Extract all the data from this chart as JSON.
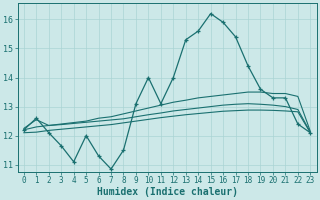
{
  "xlabel": "Humidex (Indice chaleur)",
  "ylabel": "",
  "background_color": "#cce8e8",
  "grid_color": "#aad4d4",
  "line_color": "#1a7070",
  "plot_bg": "#cce8e8",
  "xlim": [
    -0.5,
    23.5
  ],
  "ylim": [
    10.75,
    16.55
  ],
  "yticks": [
    11,
    12,
    13,
    14,
    15,
    16
  ],
  "xticks": [
    0,
    1,
    2,
    3,
    4,
    5,
    6,
    7,
    8,
    9,
    10,
    11,
    12,
    13,
    14,
    15,
    16,
    17,
    18,
    19,
    20,
    21,
    22,
    23
  ],
  "main_line_x": [
    0,
    1,
    2,
    3,
    4,
    5,
    6,
    7,
    8,
    9,
    10,
    11,
    12,
    13,
    14,
    15,
    16,
    17,
    18,
    19,
    20,
    21,
    22,
    23
  ],
  "main_line_y": [
    12.2,
    12.6,
    12.1,
    11.65,
    11.1,
    12.0,
    11.3,
    10.85,
    11.5,
    13.1,
    14.0,
    13.1,
    14.0,
    15.3,
    15.6,
    16.2,
    15.9,
    15.4,
    14.4,
    13.6,
    13.3,
    13.3,
    12.4,
    12.1
  ],
  "upper_line_x": [
    0,
    1,
    2,
    3,
    4,
    5,
    6,
    7,
    8,
    9,
    10,
    11,
    12,
    13,
    14,
    15,
    16,
    17,
    18,
    19,
    20,
    21,
    22,
    23
  ],
  "upper_line_y": [
    12.25,
    12.55,
    12.35,
    12.4,
    12.45,
    12.5,
    12.6,
    12.65,
    12.75,
    12.85,
    12.95,
    13.05,
    13.15,
    13.22,
    13.3,
    13.35,
    13.4,
    13.45,
    13.5,
    13.5,
    13.45,
    13.45,
    13.35,
    12.15
  ],
  "mid_line_x": [
    0,
    1,
    2,
    3,
    4,
    5,
    6,
    7,
    8,
    9,
    10,
    11,
    12,
    13,
    14,
    15,
    16,
    17,
    18,
    19,
    20,
    21,
    22,
    23
  ],
  "mid_line_y": [
    12.2,
    12.3,
    12.35,
    12.38,
    12.42,
    12.46,
    12.5,
    12.54,
    12.58,
    12.65,
    12.72,
    12.78,
    12.85,
    12.9,
    12.95,
    13.0,
    13.05,
    13.08,
    13.1,
    13.08,
    13.05,
    13.0,
    12.9,
    12.12
  ],
  "lower_line_x": [
    0,
    1,
    2,
    3,
    4,
    5,
    6,
    7,
    8,
    9,
    10,
    11,
    12,
    13,
    14,
    15,
    16,
    17,
    18,
    19,
    20,
    21,
    22,
    23
  ],
  "lower_line_y": [
    12.1,
    12.12,
    12.18,
    12.22,
    12.26,
    12.3,
    12.34,
    12.38,
    12.44,
    12.5,
    12.56,
    12.62,
    12.67,
    12.72,
    12.76,
    12.8,
    12.84,
    12.86,
    12.88,
    12.88,
    12.87,
    12.85,
    12.82,
    12.1
  ]
}
